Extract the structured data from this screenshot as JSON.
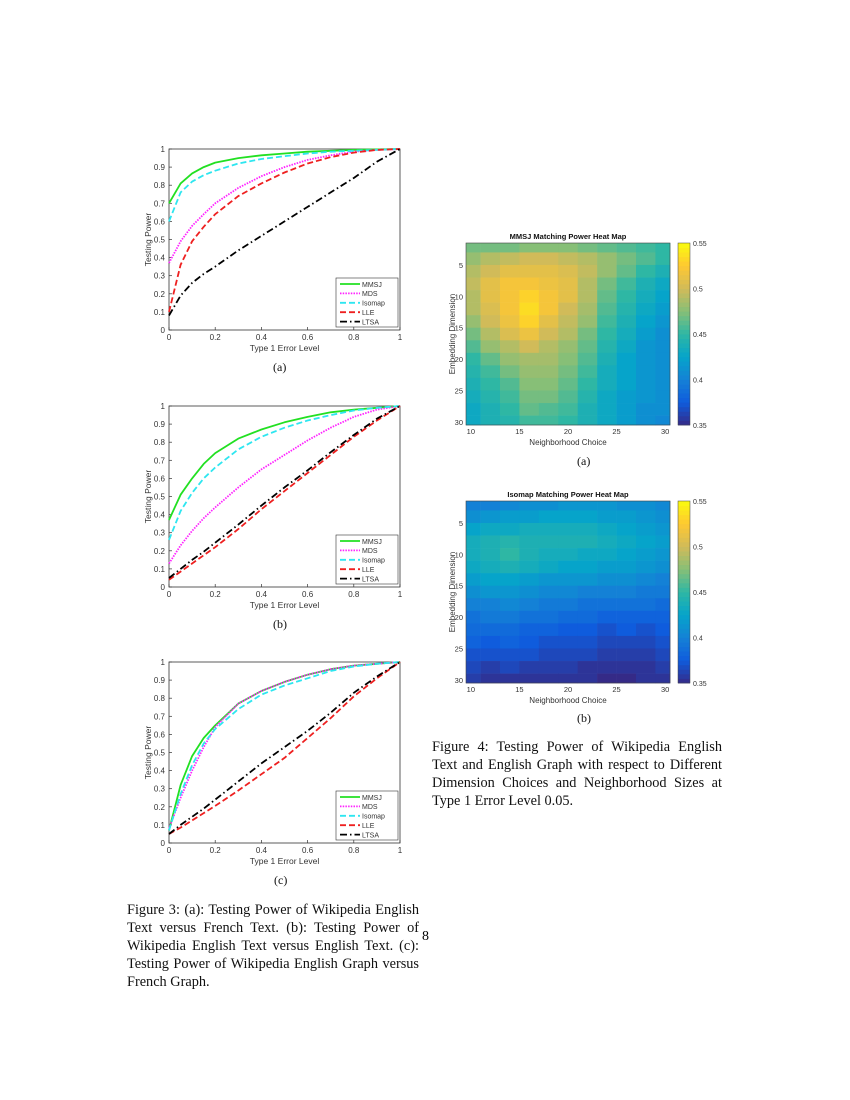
{
  "page_number": "8",
  "figure3": {
    "caption": "Figure 3: (a): Testing Power of Wikipedia English Text versus French Text. (b): Testing Power of Wikipedia English Text versus English Text. (c): Testing Power of Wikipedia English Graph versus French Graph.",
    "sublabels": [
      "(a)",
      "(b)",
      "(c)"
    ]
  },
  "figure4": {
    "caption": "Figure 4: Testing Power of Wikipedia English Text and English Graph with respect to Different Dimension Choices and Neighborhood Sizes at Type 1 Error Level 0.05.",
    "sublabels": [
      "(a)",
      "(b)"
    ]
  },
  "series_styles": [
    {
      "name": "MMSJ",
      "color": "#22e022",
      "style": "solid"
    },
    {
      "name": "MDS",
      "color": "#ff22ff",
      "style": "dotted"
    },
    {
      "name": "Isomap",
      "color": "#2ee6f0",
      "style": "dashed"
    },
    {
      "name": "LLE",
      "color": "#ee2020",
      "style": "dashed"
    },
    {
      "name": "LTSA",
      "color": "#000000",
      "style": "dashdot"
    }
  ],
  "chart_data": [
    {
      "type": "line",
      "panel": "(a)",
      "xlabel": "Type 1 Error Level",
      "ylabel": "Testing Power",
      "xlim": [
        0,
        1
      ],
      "ylim": [
        0,
        1
      ],
      "xticks": [
        "0",
        "0.2",
        "0.4",
        "0.6",
        "0.8",
        "1"
      ],
      "yticks": [
        "0",
        "0.1",
        "0.2",
        "0.3",
        "0.4",
        "0.5",
        "0.6",
        "0.7",
        "0.8",
        "0.9",
        "1"
      ],
      "legend": "bottom-right",
      "grid": false,
      "x": [
        0,
        0.05,
        0.1,
        0.15,
        0.2,
        0.3,
        0.4,
        0.5,
        0.6,
        0.7,
        0.8,
        0.9,
        1.0
      ],
      "series": [
        {
          "name": "MMSJ",
          "values": [
            0.7,
            0.81,
            0.865,
            0.9,
            0.925,
            0.95,
            0.965,
            0.975,
            0.985,
            0.99,
            0.995,
            0.998,
            1
          ]
        },
        {
          "name": "MDS",
          "values": [
            0.37,
            0.49,
            0.575,
            0.64,
            0.7,
            0.785,
            0.85,
            0.9,
            0.94,
            0.965,
            0.985,
            0.995,
            1
          ]
        },
        {
          "name": "Isomap",
          "values": [
            0.6,
            0.76,
            0.82,
            0.855,
            0.88,
            0.92,
            0.945,
            0.96,
            0.975,
            0.985,
            0.99,
            0.995,
            1
          ]
        },
        {
          "name": "LLE",
          "values": [
            0.1,
            0.36,
            0.49,
            0.57,
            0.64,
            0.74,
            0.81,
            0.87,
            0.92,
            0.955,
            0.98,
            0.995,
            1
          ]
        },
        {
          "name": "LTSA",
          "values": [
            0.08,
            0.19,
            0.26,
            0.31,
            0.35,
            0.44,
            0.52,
            0.6,
            0.68,
            0.76,
            0.84,
            0.93,
            1
          ]
        }
      ]
    },
    {
      "type": "line",
      "panel": "(b)",
      "xlabel": "Type 1 Error Level",
      "ylabel": "Testing Power",
      "xlim": [
        0,
        1
      ],
      "ylim": [
        0,
        1
      ],
      "xticks": [
        "0",
        "0.2",
        "0.4",
        "0.6",
        "0.8",
        "1"
      ],
      "yticks": [
        "0",
        "0.1",
        "0.2",
        "0.3",
        "0.4",
        "0.5",
        "0.6",
        "0.7",
        "0.8",
        "0.9",
        "1"
      ],
      "legend": "bottom-right",
      "grid": false,
      "x": [
        0,
        0.05,
        0.1,
        0.15,
        0.2,
        0.3,
        0.4,
        0.5,
        0.6,
        0.7,
        0.8,
        0.9,
        1.0
      ],
      "series": [
        {
          "name": "MMSJ",
          "values": [
            0.37,
            0.51,
            0.6,
            0.68,
            0.74,
            0.82,
            0.87,
            0.91,
            0.94,
            0.965,
            0.98,
            0.99,
            1
          ]
        },
        {
          "name": "MDS",
          "values": [
            0.13,
            0.23,
            0.31,
            0.38,
            0.44,
            0.55,
            0.65,
            0.73,
            0.81,
            0.88,
            0.94,
            0.98,
            1
          ]
        },
        {
          "name": "Isomap",
          "values": [
            0.26,
            0.42,
            0.52,
            0.6,
            0.66,
            0.76,
            0.83,
            0.88,
            0.92,
            0.95,
            0.975,
            0.99,
            1
          ]
        },
        {
          "name": "LLE",
          "values": [
            0.04,
            0.085,
            0.13,
            0.175,
            0.22,
            0.32,
            0.43,
            0.53,
            0.63,
            0.73,
            0.83,
            0.92,
            1
          ]
        },
        {
          "name": "LTSA",
          "values": [
            0.05,
            0.1,
            0.15,
            0.195,
            0.245,
            0.345,
            0.45,
            0.55,
            0.645,
            0.745,
            0.84,
            0.93,
            1
          ]
        }
      ]
    },
    {
      "type": "line",
      "panel": "(c)",
      "xlabel": "Type 1 Error Level",
      "ylabel": "Testing Power",
      "xlim": [
        0,
        1
      ],
      "ylim": [
        0,
        1
      ],
      "xticks": [
        "0",
        "0.2",
        "0.4",
        "0.6",
        "0.8",
        "1"
      ],
      "yticks": [
        "0",
        "0.1",
        "0.2",
        "0.3",
        "0.4",
        "0.5",
        "0.6",
        "0.7",
        "0.8",
        "0.9",
        "1"
      ],
      "legend": "bottom-right",
      "grid": false,
      "x": [
        0,
        0.05,
        0.1,
        0.15,
        0.2,
        0.3,
        0.4,
        0.5,
        0.6,
        0.7,
        0.8,
        0.9,
        1.0
      ],
      "series": [
        {
          "name": "MMSJ",
          "values": [
            0.07,
            0.32,
            0.48,
            0.58,
            0.65,
            0.77,
            0.84,
            0.89,
            0.93,
            0.96,
            0.98,
            0.99,
            1
          ]
        },
        {
          "name": "MDS",
          "values": [
            0.08,
            0.25,
            0.4,
            0.53,
            0.64,
            0.77,
            0.84,
            0.89,
            0.93,
            0.96,
            0.98,
            0.99,
            1
          ]
        },
        {
          "name": "Isomap",
          "values": [
            0.07,
            0.27,
            0.43,
            0.55,
            0.63,
            0.74,
            0.82,
            0.87,
            0.91,
            0.95,
            0.975,
            0.99,
            1
          ]
        },
        {
          "name": "LLE",
          "values": [
            0.05,
            0.085,
            0.125,
            0.165,
            0.205,
            0.29,
            0.38,
            0.47,
            0.58,
            0.69,
            0.81,
            0.91,
            1
          ]
        },
        {
          "name": "LTSA",
          "values": [
            0.05,
            0.1,
            0.145,
            0.19,
            0.24,
            0.34,
            0.44,
            0.53,
            0.62,
            0.72,
            0.83,
            0.92,
            1
          ]
        }
      ]
    },
    {
      "type": "heatmap",
      "panel": "(a)",
      "title": "MMSJ Matching Power Heat Map",
      "xlabel": "Neighborhood Choice",
      "ylabel": "Embedding Dimension",
      "xticks": [
        "10",
        "15",
        "20",
        "25",
        "30"
      ],
      "yticks": [
        "5",
        "10",
        "15",
        "20",
        "25",
        "30"
      ],
      "colorbar_ticks": [
        "0.35",
        "0.4",
        "0.45",
        "0.5",
        "0.55"
      ],
      "clim": [
        0.35,
        0.55
      ],
      "colormap": "parula",
      "x": [
        10,
        12,
        14,
        16,
        18,
        20,
        22,
        24,
        26,
        28,
        30
      ],
      "y": [
        2,
        4,
        6,
        8,
        10,
        12,
        14,
        16,
        18,
        20,
        22,
        24,
        26,
        28,
        30
      ],
      "values": [
        [
          0.47,
          0.47,
          0.47,
          0.475,
          0.475,
          0.475,
          0.47,
          0.465,
          0.46,
          0.455,
          0.45
        ],
        [
          0.48,
          0.49,
          0.495,
          0.5,
          0.5,
          0.495,
          0.49,
          0.48,
          0.47,
          0.46,
          0.45
        ],
        [
          0.49,
          0.5,
          0.51,
          0.51,
          0.51,
          0.505,
          0.495,
          0.48,
          0.465,
          0.45,
          0.44
        ],
        [
          0.495,
          0.51,
          0.52,
          0.52,
          0.515,
          0.51,
          0.49,
          0.47,
          0.455,
          0.44,
          0.43
        ],
        [
          0.49,
          0.51,
          0.52,
          0.53,
          0.52,
          0.51,
          0.49,
          0.465,
          0.45,
          0.435,
          0.425
        ],
        [
          0.49,
          0.505,
          0.52,
          0.535,
          0.52,
          0.5,
          0.485,
          0.46,
          0.445,
          0.43,
          0.42
        ],
        [
          0.48,
          0.5,
          0.515,
          0.53,
          0.51,
          0.495,
          0.48,
          0.455,
          0.44,
          0.425,
          0.415
        ],
        [
          0.47,
          0.49,
          0.505,
          0.515,
          0.5,
          0.49,
          0.47,
          0.45,
          0.435,
          0.42,
          0.41
        ],
        [
          0.46,
          0.48,
          0.49,
          0.5,
          0.49,
          0.48,
          0.465,
          0.445,
          0.43,
          0.415,
          0.41
        ],
        [
          0.45,
          0.465,
          0.48,
          0.485,
          0.485,
          0.475,
          0.46,
          0.44,
          0.425,
          0.415,
          0.41
        ],
        [
          0.445,
          0.455,
          0.47,
          0.48,
          0.48,
          0.47,
          0.455,
          0.435,
          0.425,
          0.415,
          0.41
        ],
        [
          0.44,
          0.45,
          0.46,
          0.475,
          0.475,
          0.465,
          0.45,
          0.435,
          0.425,
          0.415,
          0.41
        ],
        [
          0.435,
          0.445,
          0.455,
          0.47,
          0.47,
          0.46,
          0.445,
          0.43,
          0.42,
          0.415,
          0.41
        ],
        [
          0.43,
          0.44,
          0.45,
          0.465,
          0.46,
          0.455,
          0.44,
          0.43,
          0.42,
          0.41,
          0.41
        ],
        [
          0.43,
          0.44,
          0.445,
          0.455,
          0.455,
          0.45,
          0.44,
          0.43,
          0.42,
          0.41,
          0.405
        ]
      ]
    },
    {
      "type": "heatmap",
      "panel": "(b)",
      "title": "Isomap Matching Power Heat Map",
      "xlabel": "Neighborhood Choice",
      "ylabel": "Embedding Dimension",
      "xticks": [
        "10",
        "15",
        "20",
        "25",
        "30"
      ],
      "yticks": [
        "5",
        "10",
        "15",
        "20",
        "25",
        "30"
      ],
      "colorbar_ticks": [
        "0.35",
        "0.4",
        "0.45",
        "0.5",
        "0.55"
      ],
      "clim": [
        0.35,
        0.55
      ],
      "colormap": "parula",
      "x": [
        10,
        12,
        14,
        16,
        18,
        20,
        22,
        24,
        26,
        28,
        30
      ],
      "y": [
        2,
        4,
        6,
        8,
        10,
        12,
        14,
        16,
        18,
        20,
        22,
        24,
        26,
        28,
        30
      ],
      "values": [
        [
          0.4,
          0.4,
          0.405,
          0.41,
          0.41,
          0.415,
          0.415,
          0.415,
          0.41,
          0.41,
          0.405
        ],
        [
          0.41,
          0.415,
          0.42,
          0.42,
          0.425,
          0.425,
          0.425,
          0.42,
          0.42,
          0.415,
          0.41
        ],
        [
          0.425,
          0.43,
          0.43,
          0.435,
          0.435,
          0.435,
          0.435,
          0.43,
          0.425,
          0.42,
          0.415
        ],
        [
          0.435,
          0.44,
          0.445,
          0.44,
          0.44,
          0.44,
          0.44,
          0.435,
          0.43,
          0.425,
          0.42
        ],
        [
          0.435,
          0.44,
          0.45,
          0.44,
          0.435,
          0.435,
          0.43,
          0.43,
          0.425,
          0.42,
          0.415
        ],
        [
          0.43,
          0.435,
          0.44,
          0.435,
          0.43,
          0.425,
          0.425,
          0.42,
          0.42,
          0.415,
          0.41
        ],
        [
          0.42,
          0.425,
          0.425,
          0.42,
          0.415,
          0.415,
          0.415,
          0.41,
          0.41,
          0.405,
          0.4
        ],
        [
          0.41,
          0.415,
          0.415,
          0.41,
          0.405,
          0.405,
          0.4,
          0.4,
          0.4,
          0.395,
          0.395
        ],
        [
          0.4,
          0.4,
          0.405,
          0.4,
          0.395,
          0.395,
          0.39,
          0.39,
          0.39,
          0.39,
          0.385
        ],
        [
          0.39,
          0.395,
          0.395,
          0.39,
          0.39,
          0.385,
          0.385,
          0.38,
          0.38,
          0.38,
          0.38
        ],
        [
          0.385,
          0.385,
          0.385,
          0.38,
          0.38,
          0.375,
          0.375,
          0.37,
          0.375,
          0.37,
          0.375
        ],
        [
          0.38,
          0.375,
          0.38,
          0.375,
          0.37,
          0.37,
          0.37,
          0.365,
          0.365,
          0.365,
          0.37
        ],
        [
          0.37,
          0.37,
          0.37,
          0.37,
          0.365,
          0.365,
          0.365,
          0.36,
          0.36,
          0.36,
          0.365
        ],
        [
          0.365,
          0.36,
          0.365,
          0.36,
          0.36,
          0.36,
          0.355,
          0.355,
          0.355,
          0.355,
          0.36
        ],
        [
          0.36,
          0.355,
          0.355,
          0.355,
          0.355,
          0.355,
          0.355,
          0.35,
          0.35,
          0.355,
          0.355
        ]
      ]
    }
  ]
}
